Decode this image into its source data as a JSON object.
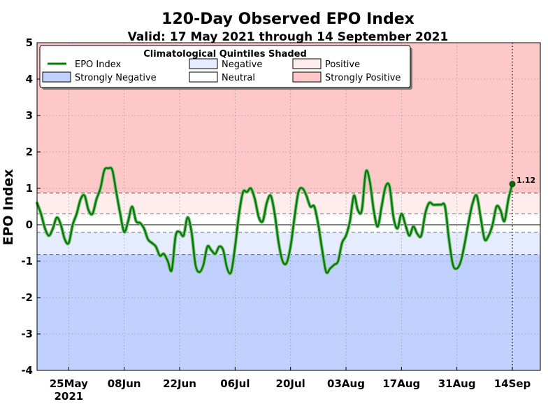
{
  "chart_data": {
    "type": "line",
    "title": "120-Day Observed EPO Index",
    "subtitle": "Valid: 17 May 2021 through 14 September 2021",
    "ylabel": "EPO Index",
    "xlabel": "",
    "ylim": [
      -4,
      5
    ],
    "yticks": [
      "5",
      "4",
      "3",
      "2",
      "1",
      "0",
      "-1",
      "-2",
      "-3",
      "-4"
    ],
    "grid": true,
    "xrange": [
      "2021-05-17",
      "2021-09-14"
    ],
    "xticks": [
      {
        "date": "2021-05-25",
        "label": "25May",
        "label2": "2021"
      },
      {
        "date": "2021-06-08",
        "label": "08Jun"
      },
      {
        "date": "2021-06-22",
        "label": "22Jun"
      },
      {
        "date": "2021-07-06",
        "label": "06Jul"
      },
      {
        "date": "2021-07-20",
        "label": "20Jul"
      },
      {
        "date": "2021-08-03",
        "label": "03Aug"
      },
      {
        "date": "2021-08-17",
        "label": "17Aug"
      },
      {
        "date": "2021-08-31",
        "label": "31Aug"
      },
      {
        "date": "2021-09-14",
        "label": "14Sep"
      }
    ],
    "quintile_thresholds": {
      "strongly_negative": -0.82,
      "negative": -0.2,
      "positive": 0.3,
      "strongly_positive": 0.87
    },
    "shading_colors": {
      "strongly_negative": "#c0d0ff",
      "negative": "#e6ecff",
      "neutral": "#ffffff",
      "positive": "#ffeded",
      "strongly_positive": "#ffc8c8"
    },
    "line_color": "#0a7a0a",
    "legend": {
      "title": "Climatological Quintiles Shaded",
      "placement": "top-left",
      "items": [
        {
          "label": "EPO Index",
          "kind": "line"
        },
        {
          "label": "Negative",
          "kind": "negative"
        },
        {
          "label": "Positive",
          "kind": "positive"
        },
        {
          "label": "Strongly Negative",
          "kind": "strongly_negative"
        },
        {
          "label": "Neutral",
          "kind": "neutral"
        },
        {
          "label": "Strongly Positive",
          "kind": "strongly_positive"
        }
      ]
    },
    "last_value_label": "1.12",
    "series": [
      {
        "name": "EPO Index",
        "points": [
          [
            "2021-05-17",
            0.6
          ],
          [
            "2021-05-18",
            0.3
          ],
          [
            "2021-05-19",
            -0.1
          ],
          [
            "2021-05-20",
            -0.3
          ],
          [
            "2021-05-21",
            -0.1
          ],
          [
            "2021-05-22",
            0.2
          ],
          [
            "2021-05-23",
            0.0
          ],
          [
            "2021-05-24",
            -0.4
          ],
          [
            "2021-05-25",
            -0.5
          ],
          [
            "2021-05-26",
            0.0
          ],
          [
            "2021-05-27",
            0.3
          ],
          [
            "2021-05-28",
            0.7
          ],
          [
            "2021-05-29",
            0.8
          ],
          [
            "2021-05-30",
            0.4
          ],
          [
            "2021-05-31",
            0.3
          ],
          [
            "2021-06-01",
            0.7
          ],
          [
            "2021-06-02",
            1.0
          ],
          [
            "2021-06-03",
            1.5
          ],
          [
            "2021-06-04",
            1.55
          ],
          [
            "2021-06-05",
            1.5
          ],
          [
            "2021-06-06",
            0.9
          ],
          [
            "2021-06-07",
            0.3
          ],
          [
            "2021-06-08",
            -0.2
          ],
          [
            "2021-06-09",
            0.1
          ],
          [
            "2021-06-10",
            0.5
          ],
          [
            "2021-06-11",
            0.1
          ],
          [
            "2021-06-12",
            0.05
          ],
          [
            "2021-06-13",
            -0.1
          ],
          [
            "2021-06-14",
            -0.4
          ],
          [
            "2021-06-15",
            -0.5
          ],
          [
            "2021-06-16",
            -0.6
          ],
          [
            "2021-06-17",
            -0.85
          ],
          [
            "2021-06-18",
            -0.8
          ],
          [
            "2021-06-19",
            -1.0
          ],
          [
            "2021-06-20",
            -1.25
          ],
          [
            "2021-06-21",
            -0.3
          ],
          [
            "2021-06-22",
            -0.2
          ],
          [
            "2021-06-23",
            -0.3
          ],
          [
            "2021-06-24",
            0.2
          ],
          [
            "2021-06-25",
            -0.2
          ],
          [
            "2021-06-26",
            -1.1
          ],
          [
            "2021-06-27",
            -1.3
          ],
          [
            "2021-06-28",
            -1.1
          ],
          [
            "2021-06-29",
            -0.6
          ],
          [
            "2021-06-30",
            -0.7
          ],
          [
            "2021-07-01",
            -0.8
          ],
          [
            "2021-07-02",
            -0.6
          ],
          [
            "2021-07-03",
            -0.7
          ],
          [
            "2021-07-04",
            -1.2
          ],
          [
            "2021-07-05",
            -1.3
          ],
          [
            "2021-07-06",
            -0.6
          ],
          [
            "2021-07-07",
            0.3
          ],
          [
            "2021-07-08",
            0.9
          ],
          [
            "2021-07-09",
            0.9
          ],
          [
            "2021-07-10",
            1.0
          ],
          [
            "2021-07-11",
            0.7
          ],
          [
            "2021-07-12",
            0.2
          ],
          [
            "2021-07-13",
            0.1
          ],
          [
            "2021-07-14",
            0.6
          ],
          [
            "2021-07-15",
            0.8
          ],
          [
            "2021-07-16",
            0.3
          ],
          [
            "2021-07-17",
            -0.5
          ],
          [
            "2021-07-18",
            -1.0
          ],
          [
            "2021-07-19",
            -1.05
          ],
          [
            "2021-07-20",
            -0.6
          ],
          [
            "2021-07-21",
            0.2
          ],
          [
            "2021-07-22",
            0.9
          ],
          [
            "2021-07-23",
            1.0
          ],
          [
            "2021-07-24",
            0.8
          ],
          [
            "2021-07-25",
            0.5
          ],
          [
            "2021-07-26",
            0.5
          ],
          [
            "2021-07-27",
            0.0
          ],
          [
            "2021-07-28",
            -0.7
          ],
          [
            "2021-07-29",
            -1.3
          ],
          [
            "2021-07-30",
            -1.2
          ],
          [
            "2021-07-31",
            -1.1
          ],
          [
            "2021-08-01",
            -1.0
          ],
          [
            "2021-08-02",
            -0.5
          ],
          [
            "2021-08-03",
            -0.3
          ],
          [
            "2021-08-04",
            0.1
          ],
          [
            "2021-08-05",
            0.8
          ],
          [
            "2021-08-06",
            0.4
          ],
          [
            "2021-08-07",
            0.4
          ],
          [
            "2021-08-08",
            1.45
          ],
          [
            "2021-08-09",
            1.2
          ],
          [
            "2021-08-10",
            0.4
          ],
          [
            "2021-08-11",
            -0.05
          ],
          [
            "2021-08-12",
            0.5
          ],
          [
            "2021-08-13",
            1.05
          ],
          [
            "2021-08-14",
            1.05
          ],
          [
            "2021-08-15",
            0.2
          ],
          [
            "2021-08-16",
            -0.1
          ],
          [
            "2021-08-17",
            0.3
          ],
          [
            "2021-08-18",
            0.0
          ],
          [
            "2021-08-19",
            -0.3
          ],
          [
            "2021-08-20",
            -0.05
          ],
          [
            "2021-08-21",
            -0.25
          ],
          [
            "2021-08-22",
            -0.3
          ],
          [
            "2021-08-23",
            0.3
          ],
          [
            "2021-08-24",
            0.6
          ],
          [
            "2021-08-25",
            0.55
          ],
          [
            "2021-08-26",
            0.55
          ],
          [
            "2021-08-27",
            0.55
          ],
          [
            "2021-08-28",
            0.5
          ],
          [
            "2021-08-29",
            -0.4
          ],
          [
            "2021-08-30",
            -1.1
          ],
          [
            "2021-08-31",
            -1.2
          ],
          [
            "2021-09-01",
            -1.0
          ],
          [
            "2021-09-02",
            -0.5
          ],
          [
            "2021-09-03",
            0.1
          ],
          [
            "2021-09-04",
            0.6
          ],
          [
            "2021-09-05",
            0.8
          ],
          [
            "2021-09-06",
            0.2
          ],
          [
            "2021-09-07",
            -0.4
          ],
          [
            "2021-09-08",
            -0.3
          ],
          [
            "2021-09-09",
            0.0
          ],
          [
            "2021-09-10",
            0.5
          ],
          [
            "2021-09-11",
            0.4
          ],
          [
            "2021-09-12",
            0.1
          ],
          [
            "2021-09-13",
            0.7
          ],
          [
            "2021-09-14",
            1.12
          ]
        ]
      }
    ]
  }
}
